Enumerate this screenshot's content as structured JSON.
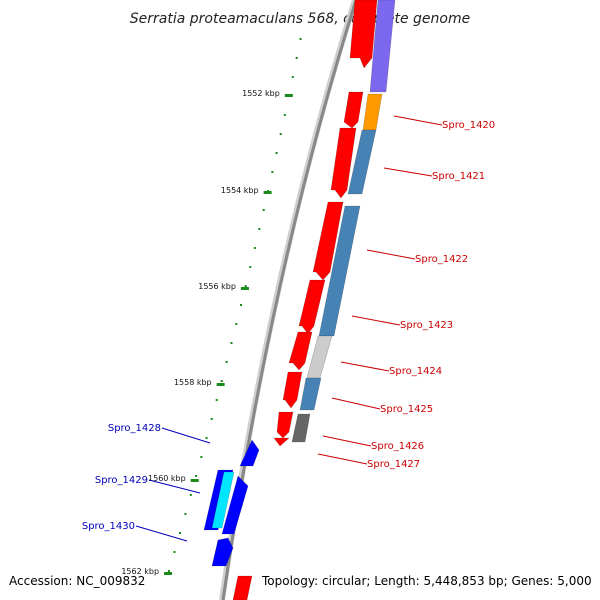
{
  "title": "Serratia proteamaculans 568, complete genome",
  "footer": {
    "accession": "Accession: NC_009832",
    "summary": "Topology: circular; Length: 5,448,853 bp; Genes: 5,000"
  },
  "colors": {
    "backbone": "#888888",
    "tick": "#1a8a1a",
    "forward_label": "#cc0000",
    "reverse_label": "#0000bb",
    "cds_red": "#ff0000",
    "orange": "#ff9900",
    "steelblue": "#4682b4",
    "lightgray": "#cccccc",
    "darkgray": "#666666",
    "purple": "#7b68ee",
    "blue": "#0000ff",
    "cyan": "#00e5ff"
  },
  "ticks": [
    {
      "kbp": 1552,
      "label": "1552 kbp"
    },
    {
      "kbp": 1554,
      "label": "1554 kbp"
    },
    {
      "kbp": 1556,
      "label": "1556 kbp"
    },
    {
      "kbp": 1558,
      "label": "1558 kbp"
    },
    {
      "kbp": 1560,
      "label": "1560 kbp"
    },
    {
      "kbp": 1562,
      "label": "1562 kbp"
    }
  ],
  "labeled_genes": [
    {
      "name": "Spro_1420",
      "strand": "forward"
    },
    {
      "name": "Spro_1421",
      "strand": "forward"
    },
    {
      "name": "Spro_1422",
      "strand": "forward"
    },
    {
      "name": "Spro_1423",
      "strand": "forward"
    },
    {
      "name": "Spro_1424",
      "strand": "forward"
    },
    {
      "name": "Spro_1425",
      "strand": "forward"
    },
    {
      "name": "Spro_1426",
      "strand": "forward"
    },
    {
      "name": "Spro_1427",
      "strand": "forward"
    },
    {
      "name": "Spro_1428",
      "strand": "reverse"
    },
    {
      "name": "Spro_1429",
      "strand": "reverse"
    },
    {
      "name": "Spro_1430",
      "strand": "reverse"
    }
  ]
}
